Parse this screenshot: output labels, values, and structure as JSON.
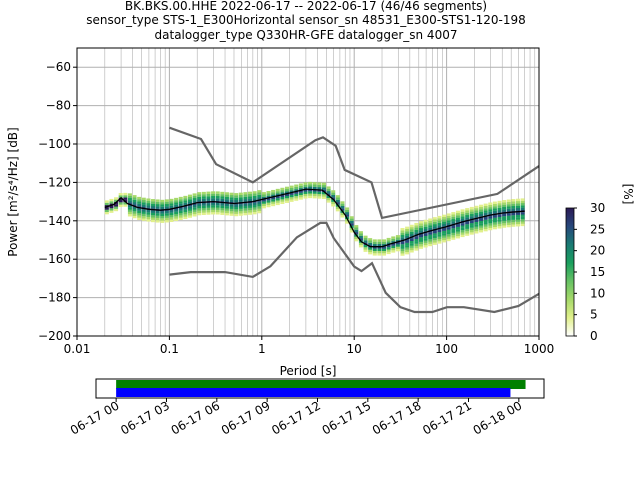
{
  "title_lines": [
    "BK.BKS.00.HHE   2022-06-17 -- 2022-06-17  (46/46 segments)",
    "sensor_type STS-1_E300Horizontal sensor_sn 48531_E300-STS1-120-198",
    "datalogger_type Q330HR-GFE datalogger_sn 4007"
  ],
  "chart_data": {
    "type": "heatmap",
    "xlabel": "Period [s]",
    "ylabel": "Power [m²/s⁴/Hz] [dB]",
    "xscale": "log",
    "xlim": [
      0.01,
      1000
    ],
    "ylim": [
      -200,
      -50
    ],
    "x_ticks": [
      {
        "value": 0.01,
        "label": "0.01"
      },
      {
        "value": 0.1,
        "label": "0.1"
      },
      {
        "value": 1,
        "label": "1"
      },
      {
        "value": 10,
        "label": "10"
      },
      {
        "value": 100,
        "label": "100"
      },
      {
        "value": 1000,
        "label": "1000"
      }
    ],
    "y_ticks": [
      {
        "value": -60,
        "label": "−60"
      },
      {
        "value": -80,
        "label": "−80"
      },
      {
        "value": -100,
        "label": "−100"
      },
      {
        "value": -120,
        "label": "−120"
      },
      {
        "value": -140,
        "label": "−140"
      },
      {
        "value": -160,
        "label": "−160"
      },
      {
        "value": -180,
        "label": "−180"
      },
      {
        "value": -200,
        "label": "−200"
      }
    ],
    "grid": true,
    "noise_model_high": {
      "x": [
        0.1,
        0.22,
        0.32,
        0.8,
        3.8,
        4.6,
        6.3,
        7.9,
        15.4,
        20,
        354.8,
        1000
      ],
      "y": [
        -91.5,
        -97.4,
        -110.5,
        -120,
        -98,
        -96.5,
        -101,
        -113.5,
        -120,
        -138.5,
        -126,
        -111.5
      ]
    },
    "noise_model_low": {
      "x": [
        0.1,
        0.17,
        0.4,
        0.8,
        1.24,
        2.4,
        4.3,
        5,
        6,
        10,
        12,
        15.6,
        21.9,
        31.6,
        45,
        70,
        101,
        154,
        328,
        600,
        1000
      ],
      "y": [
        -168,
        -166.7,
        -166.7,
        -169.2,
        -163.7,
        -148.6,
        -141.1,
        -141.1,
        -149,
        -163.8,
        -166.2,
        -162.1,
        -177.5,
        -185,
        -187.5,
        -187.5,
        -185,
        -185,
        -187.5,
        -184.4,
        -178
      ]
    },
    "mean_curve": {
      "x": [
        0.02,
        0.025,
        0.03,
        0.035,
        0.045,
        0.06,
        0.08,
        0.1,
        0.14,
        0.2,
        0.3,
        0.5,
        0.8,
        1.2,
        2,
        3,
        4.5,
        6,
        8,
        10,
        12,
        15,
        20,
        25,
        35,
        50,
        70,
        100,
        150,
        200,
        300,
        400,
        500,
        700
      ],
      "y": [
        -133,
        -131.5,
        -128,
        -131,
        -133,
        -134,
        -134.5,
        -134,
        -132.5,
        -130.5,
        -130,
        -131,
        -130,
        -128,
        -125.5,
        -123.5,
        -124,
        -129,
        -137,
        -146,
        -151,
        -153.5,
        -153.5,
        -152,
        -150,
        -147,
        -145,
        -143,
        -140.5,
        -139,
        -137,
        -136,
        -135.5,
        -135
      ]
    },
    "colorbar": {
      "label": "[%]",
      "min": 0,
      "max": 30,
      "ticks": [
        0,
        5,
        10,
        15,
        20,
        25,
        30
      ],
      "colors": [
        "#ffffff",
        "#e1f08c",
        "#a6d96a",
        "#66c164",
        "#1a9f5e",
        "#1a7a73",
        "#27477b",
        "#2b1a55"
      ]
    }
  },
  "timeline": {
    "tick_labels": [
      "06-17 00",
      "06-17 03",
      "06-17 06",
      "06-17 09",
      "06-17 12",
      "06-17 15",
      "06-17 18",
      "06-17 21",
      "06-18 00"
    ],
    "bars": [
      {
        "name": "",
        "color": "#008000",
        "start_hour": 0,
        "end_hour": 24.4
      },
      {
        "name": "",
        "color": "#0000ff",
        "start_hour": 0,
        "end_hour": 23.5
      }
    ],
    "range_hours": [
      -1.2,
      25.5
    ]
  }
}
